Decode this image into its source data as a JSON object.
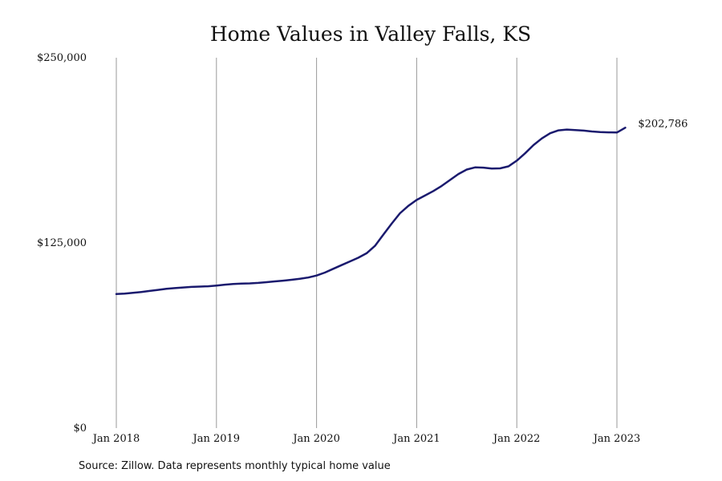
{
  "chart_data": {
    "type": "line",
    "title": "Home Values in Valley Falls, KS",
    "source": "Source: Zillow. Data represents monthly typical home value",
    "ylim": [
      0,
      250000
    ],
    "y_ticks": [
      {
        "value": 0,
        "label": "$0"
      },
      {
        "value": 125000,
        "label": "$125,000"
      },
      {
        "value": 250000,
        "label": "$250,000"
      }
    ],
    "x_ticks": [
      "Jan 2018",
      "Jan 2019",
      "Jan 2020",
      "Jan 2021",
      "Jan 2022",
      "Jan 2023"
    ],
    "grid": "vertical",
    "line_color": "#1a1a6e",
    "end_label": "$202,786",
    "series": [
      {
        "x": [
          "2018-01",
          "2018-02",
          "2018-03",
          "2018-04",
          "2018-05",
          "2018-06",
          "2018-07",
          "2018-08",
          "2018-09",
          "2018-10",
          "2018-11",
          "2018-12",
          "2019-01",
          "2019-02",
          "2019-03",
          "2019-04",
          "2019-05",
          "2019-06",
          "2019-07",
          "2019-08",
          "2019-09",
          "2019-10",
          "2019-11",
          "2019-12",
          "2020-01",
          "2020-02",
          "2020-03",
          "2020-04",
          "2020-05",
          "2020-06",
          "2020-07",
          "2020-08",
          "2020-09",
          "2020-10",
          "2020-11",
          "2020-12",
          "2021-01",
          "2021-02",
          "2021-03",
          "2021-04",
          "2021-05",
          "2021-06",
          "2021-07",
          "2021-08",
          "2021-09",
          "2021-10",
          "2021-11",
          "2021-12",
          "2022-01",
          "2022-02",
          "2022-03",
          "2022-04",
          "2022-05",
          "2022-06",
          "2022-07",
          "2022-08",
          "2022-09",
          "2022-10",
          "2022-11",
          "2022-12",
          "2023-01",
          "2023-02"
        ],
        "values": [
          90500,
          90800,
          91300,
          91900,
          92600,
          93300,
          94000,
          94500,
          94900,
          95300,
          95500,
          95700,
          96200,
          96800,
          97300,
          97500,
          97700,
          98000,
          98500,
          99000,
          99500,
          100100,
          100800,
          101600,
          103000,
          105000,
          107500,
          110000,
          112500,
          115000,
          118000,
          123000,
          130500,
          138000,
          145000,
          150000,
          154000,
          157000,
          160000,
          163500,
          167500,
          171500,
          174500,
          176000,
          175800,
          175200,
          175300,
          176700,
          180500,
          185500,
          191000,
          195500,
          199000,
          201000,
          201500,
          201200,
          200800,
          200200,
          199800,
          199600,
          199500,
          202786
        ]
      }
    ]
  }
}
